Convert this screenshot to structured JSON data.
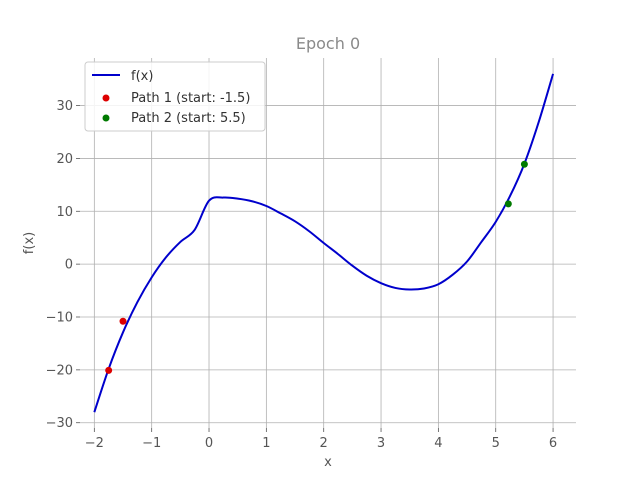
{
  "chart_data": {
    "type": "line",
    "title": "Epoch 0",
    "xlabel": "x",
    "ylabel": "f(x)",
    "xlim": [
      -2.25,
      6.4
    ],
    "ylim": [
      -31,
      39
    ],
    "xticks": [
      -2,
      -1,
      0,
      1,
      2,
      3,
      4,
      5,
      6
    ],
    "yticks": [
      -30,
      -20,
      -10,
      0,
      10,
      20,
      30
    ],
    "xtick_labels": [
      "−2",
      "−1",
      "0",
      "1",
      "2",
      "3",
      "4",
      "5",
      "6"
    ],
    "ytick_labels": [
      "−30",
      "−20",
      "−10",
      "0",
      "10",
      "20",
      "30"
    ],
    "grid": true,
    "legend_position": "top-left",
    "series": [
      {
        "name": "f(x)",
        "kind": "line",
        "color": "#0000cc",
        "x": [
          -2.0,
          -1.75,
          -1.5,
          -1.25,
          -1.0,
          -0.75,
          -0.5,
          -0.25,
          0.0,
          0.25,
          0.5,
          0.75,
          1.0,
          1.25,
          1.5,
          1.75,
          2.0,
          2.25,
          2.5,
          2.75,
          3.0,
          3.25,
          3.5,
          3.75,
          4.0,
          4.25,
          4.5,
          4.75,
          5.0,
          5.25,
          5.5,
          5.75,
          6.0
        ],
        "y": [
          -28.0,
          -19.8,
          -12.9,
          -7.2,
          -2.5,
          1.3,
          4.2,
          6.5,
          12.0,
          12.6,
          12.4,
          11.9,
          11.0,
          9.6,
          8.1,
          6.2,
          4.0,
          1.9,
          -0.3,
          -2.2,
          -3.6,
          -4.5,
          -4.8,
          -4.6,
          -3.8,
          -2.0,
          0.5,
          4.2,
          8.0,
          12.9,
          19.0,
          26.9,
          36.0
        ]
      },
      {
        "name": "Path 1 (start: -1.5)",
        "kind": "scatter",
        "color": "#dd0000",
        "x": [
          -1.5,
          -1.75
        ],
        "y": [
          -10.8,
          -20.1
        ]
      },
      {
        "name": "Path 2 (start: 5.5)",
        "kind": "scatter",
        "color": "#007a00",
        "x": [
          5.5,
          5.22
        ],
        "y": [
          18.9,
          11.4
        ]
      }
    ]
  }
}
